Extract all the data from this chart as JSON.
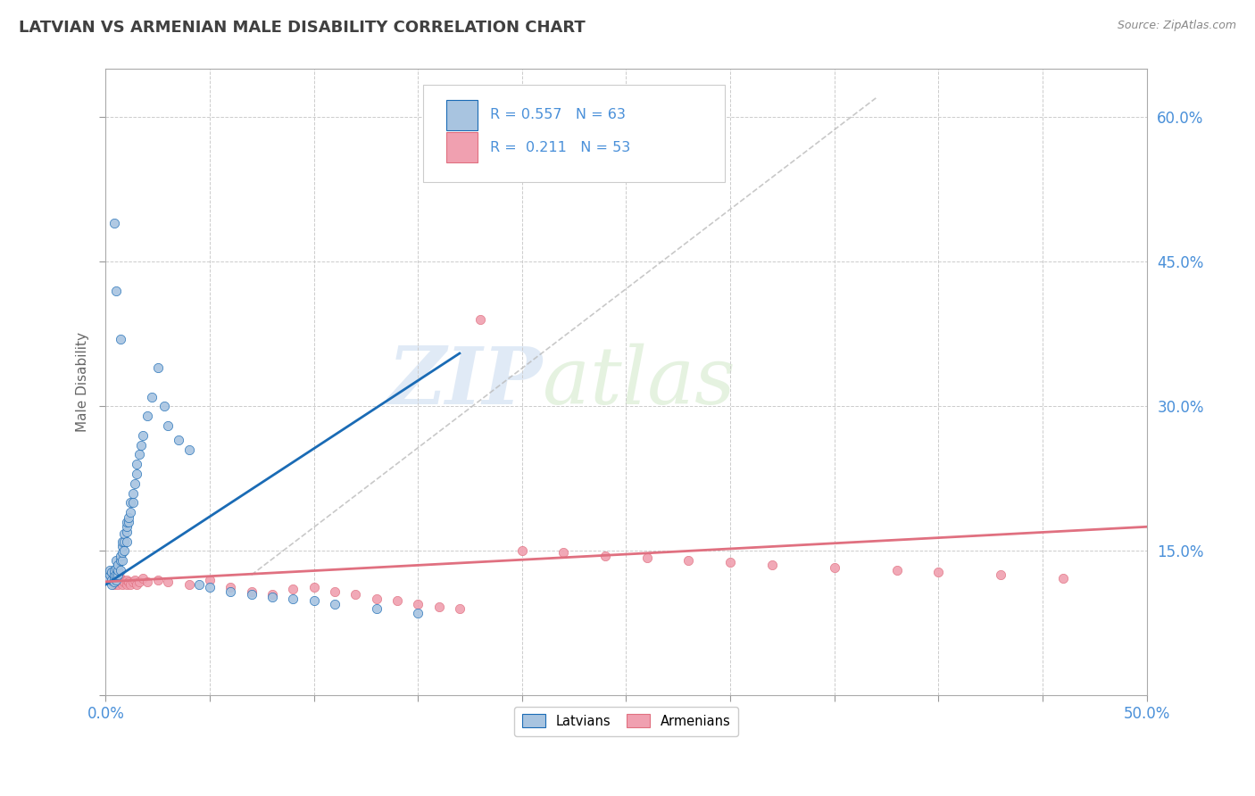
{
  "title": "LATVIAN VS ARMENIAN MALE DISABILITY CORRELATION CHART",
  "source": "Source: ZipAtlas.com",
  "ylabel": "Male Disability",
  "xlim": [
    0.0,
    0.5
  ],
  "ylim": [
    0.0,
    0.65
  ],
  "xticks": [
    0.0,
    0.05,
    0.1,
    0.15,
    0.2,
    0.25,
    0.3,
    0.35,
    0.4,
    0.45,
    0.5
  ],
  "xticklabels": [
    "0.0%",
    "",
    "",
    "",
    "",
    "",
    "",
    "",
    "",
    "",
    "50.0%"
  ],
  "yticks": [
    0.0,
    0.15,
    0.3,
    0.45,
    0.6
  ],
  "yticklabels": [
    "",
    "15.0%",
    "30.0%",
    "45.0%",
    "60.0%"
  ],
  "grid_color": "#cccccc",
  "latvian_color": "#a8c4e0",
  "armenian_color": "#f0a0b0",
  "latvian_line_color": "#1a6bb5",
  "armenian_line_color": "#e07080",
  "diag_color": "#bbbbbb",
  "R_latvian": 0.557,
  "N_latvian": 63,
  "R_armenian": 0.211,
  "N_armenian": 53,
  "watermark_zip": "ZIP",
  "watermark_atlas": "atlas",
  "latvians_x": [
    0.001,
    0.002,
    0.002,
    0.003,
    0.003,
    0.003,
    0.004,
    0.004,
    0.004,
    0.004,
    0.005,
    0.005,
    0.005,
    0.005,
    0.006,
    0.006,
    0.006,
    0.007,
    0.007,
    0.007,
    0.008,
    0.008,
    0.008,
    0.008,
    0.009,
    0.009,
    0.009,
    0.01,
    0.01,
    0.01,
    0.01,
    0.011,
    0.011,
    0.012,
    0.012,
    0.013,
    0.013,
    0.014,
    0.015,
    0.015,
    0.016,
    0.017,
    0.018,
    0.02,
    0.022,
    0.025,
    0.028,
    0.03,
    0.035,
    0.04,
    0.045,
    0.05,
    0.06,
    0.07,
    0.08,
    0.09,
    0.1,
    0.11,
    0.13,
    0.15,
    0.004,
    0.005,
    0.007
  ],
  "latvians_y": [
    0.12,
    0.125,
    0.13,
    0.115,
    0.12,
    0.128,
    0.118,
    0.122,
    0.125,
    0.13,
    0.12,
    0.125,
    0.132,
    0.14,
    0.125,
    0.13,
    0.135,
    0.13,
    0.14,
    0.145,
    0.14,
    0.148,
    0.155,
    0.16,
    0.15,
    0.16,
    0.168,
    0.16,
    0.17,
    0.175,
    0.18,
    0.18,
    0.185,
    0.19,
    0.2,
    0.2,
    0.21,
    0.22,
    0.23,
    0.24,
    0.25,
    0.26,
    0.27,
    0.29,
    0.31,
    0.34,
    0.3,
    0.28,
    0.265,
    0.255,
    0.115,
    0.112,
    0.108,
    0.105,
    0.102,
    0.1,
    0.098,
    0.095,
    0.09,
    0.085,
    0.49,
    0.42,
    0.37
  ],
  "armenians_x": [
    0.002,
    0.003,
    0.003,
    0.004,
    0.004,
    0.005,
    0.005,
    0.006,
    0.006,
    0.007,
    0.007,
    0.008,
    0.008,
    0.009,
    0.01,
    0.01,
    0.011,
    0.012,
    0.013,
    0.014,
    0.015,
    0.016,
    0.018,
    0.02,
    0.025,
    0.03,
    0.04,
    0.05,
    0.06,
    0.07,
    0.08,
    0.09,
    0.1,
    0.11,
    0.12,
    0.13,
    0.14,
    0.15,
    0.16,
    0.17,
    0.18,
    0.2,
    0.22,
    0.24,
    0.26,
    0.28,
    0.3,
    0.32,
    0.35,
    0.38,
    0.4,
    0.43,
    0.46
  ],
  "armenians_y": [
    0.12,
    0.118,
    0.122,
    0.115,
    0.125,
    0.118,
    0.122,
    0.115,
    0.12,
    0.118,
    0.122,
    0.115,
    0.12,
    0.118,
    0.115,
    0.12,
    0.118,
    0.115,
    0.118,
    0.12,
    0.115,
    0.118,
    0.122,
    0.118,
    0.12,
    0.118,
    0.115,
    0.12,
    0.112,
    0.108,
    0.105,
    0.11,
    0.112,
    0.108,
    0.105,
    0.1,
    0.098,
    0.095,
    0.092,
    0.09,
    0.39,
    0.15,
    0.148,
    0.145,
    0.143,
    0.14,
    0.138,
    0.135,
    0.133,
    0.13,
    0.128,
    0.125,
    0.122
  ]
}
